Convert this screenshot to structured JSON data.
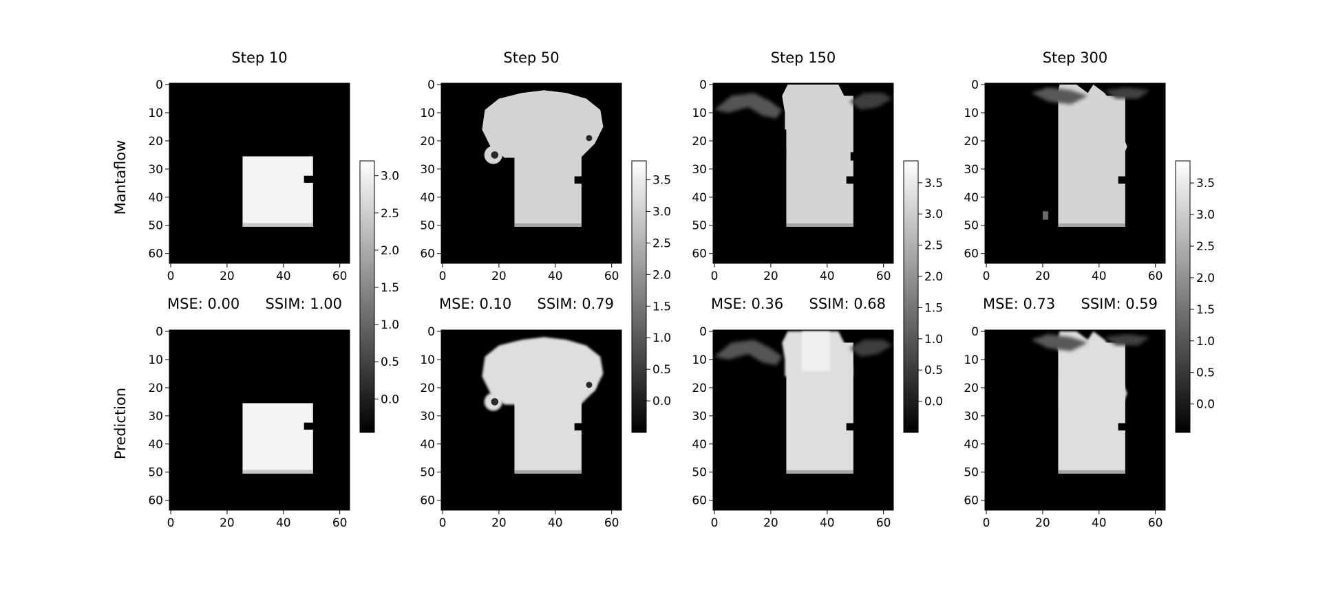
{
  "colors": {
    "background": "#ffffff",
    "low": "#000000",
    "high": "#ffffff",
    "axis": "#000000"
  },
  "chart_data": {
    "type": "heatmap",
    "colormap": "gray",
    "x_range": [
      0,
      63
    ],
    "y_range": [
      0,
      63
    ],
    "y_inverted": true,
    "tick_values": [
      0,
      10,
      20,
      30,
      40,
      50,
      60
    ],
    "x_tick_values": [
      0,
      20,
      40,
      60
    ],
    "row_labels": [
      "Mantaflow",
      "Prediction"
    ],
    "panels": [
      {
        "title": "Step 10",
        "metrics": {
          "mse": "MSE: 0.00",
          "ssim": "SSIM: 1.00"
        },
        "colorbar": {
          "vmin": -0.45,
          "vmax": 3.2,
          "ticks": [
            "0.0",
            "0.5",
            "1.0",
            "1.5",
            "2.0",
            "2.5",
            "3.0"
          ]
        }
      },
      {
        "title": "Step 50",
        "metrics": {
          "mse": "MSE: 0.10",
          "ssim": "SSIM: 0.79"
        },
        "colorbar": {
          "vmin": -0.5,
          "vmax": 3.8,
          "ticks": [
            "0.0",
            "0.5",
            "1.0",
            "1.5",
            "2.0",
            "2.5",
            "3.0",
            "3.5"
          ]
        }
      },
      {
        "title": "Step 150",
        "metrics": {
          "mse": "MSE: 0.36",
          "ssim": "SSIM: 0.68"
        },
        "colorbar": {
          "vmin": -0.5,
          "vmax": 3.85,
          "ticks": [
            "0.0",
            "0.5",
            "1.0",
            "1.5",
            "2.0",
            "2.5",
            "3.0",
            "3.5"
          ]
        }
      },
      {
        "title": "Step 300",
        "metrics": {
          "mse": "MSE: 0.73",
          "ssim": "SSIM: 0.59"
        },
        "colorbar": {
          "vmin": -0.45,
          "vmax": 3.85,
          "ticks": [
            "0.0",
            "0.5",
            "1.0",
            "1.5",
            "2.0",
            "2.5",
            "3.0",
            "3.5"
          ]
        }
      }
    ]
  }
}
